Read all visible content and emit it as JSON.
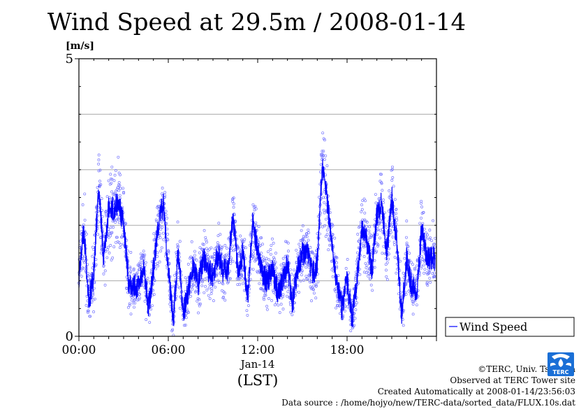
{
  "title": "Wind Speed at 29.5m / 2008-01-14",
  "chart_data": {
    "type": "line",
    "title": "Wind Speed at 29.5m / 2008-01-14",
    "ylabel": "[m/s]",
    "xlabel": "(LST)",
    "date_label": "Jan-14",
    "ylim": [
      0,
      5
    ],
    "y_ticks": [
      0,
      5
    ],
    "y_gridlines": [
      1,
      2,
      3,
      4
    ],
    "xlim": [
      "00:00",
      "24:00"
    ],
    "x_ticks": [
      "00:00",
      "06:00",
      "12:00",
      "18:00"
    ],
    "legend": {
      "position": "right",
      "label": "Wind Speed"
    },
    "colors": {
      "line": "#0000ff",
      "points": "#7777ff",
      "grid": "#aaaaaa"
    },
    "series": [
      {
        "name": "Wind Speed",
        "x": [
          "00:00",
          "00:20",
          "00:40",
          "01:00",
          "01:20",
          "01:40",
          "02:00",
          "02:20",
          "02:40",
          "03:00",
          "03:20",
          "03:40",
          "04:00",
          "04:20",
          "04:40",
          "05:00",
          "05:20",
          "05:40",
          "06:00",
          "06:20",
          "06:40",
          "07:00",
          "07:20",
          "07:40",
          "08:00",
          "08:20",
          "08:40",
          "09:00",
          "09:20",
          "09:40",
          "10:00",
          "10:20",
          "10:40",
          "11:00",
          "11:20",
          "11:40",
          "12:00",
          "12:20",
          "12:40",
          "13:00",
          "13:20",
          "13:40",
          "14:00",
          "14:20",
          "14:40",
          "15:00",
          "15:20",
          "15:40",
          "16:00",
          "16:20",
          "16:40",
          "17:00",
          "17:20",
          "17:40",
          "18:00",
          "18:20",
          "18:40",
          "19:00",
          "19:20",
          "19:40",
          "20:00",
          "20:20",
          "20:40",
          "21:00",
          "21:20",
          "21:40",
          "22:00",
          "22:20",
          "22:40",
          "23:00",
          "23:20",
          "23:40"
        ],
        "values": [
          1.1,
          1.9,
          0.6,
          1.1,
          2.7,
          1.4,
          2.3,
          2.3,
          2.4,
          2.0,
          1.0,
          0.9,
          0.9,
          1.3,
          0.5,
          1.2,
          2.0,
          2.4,
          1.2,
          0.3,
          1.5,
          0.4,
          0.8,
          1.3,
          0.9,
          1.4,
          1.2,
          1.1,
          1.5,
          1.2,
          1.2,
          2.2,
          1.2,
          1.5,
          0.7,
          2.0,
          1.6,
          1.1,
          1.0,
          1.2,
          0.8,
          1.0,
          1.3,
          0.6,
          1.2,
          1.5,
          1.5,
          1.1,
          1.3,
          3.1,
          2.4,
          1.7,
          0.9,
          0.5,
          1.0,
          0.3,
          1.0,
          2.0,
          1.7,
          1.2,
          2.2,
          2.4,
          1.5,
          2.5,
          1.7,
          0.4,
          1.4,
          0.9,
          0.8,
          1.9,
          1.4,
          1.4
        ]
      }
    ]
  },
  "footer": {
    "credit": "©TERC, Univ. Tsukuba",
    "site": "Observed at TERC Tower site",
    "created": "Created Automatically at 2008-01-14/23:56:03",
    "source": "Data source : /home/hojyo/new/TERC-data/sorted_data/FLUX.10s.dat"
  },
  "logo": {
    "text": "TERC",
    "color": "#1a6fd6"
  }
}
